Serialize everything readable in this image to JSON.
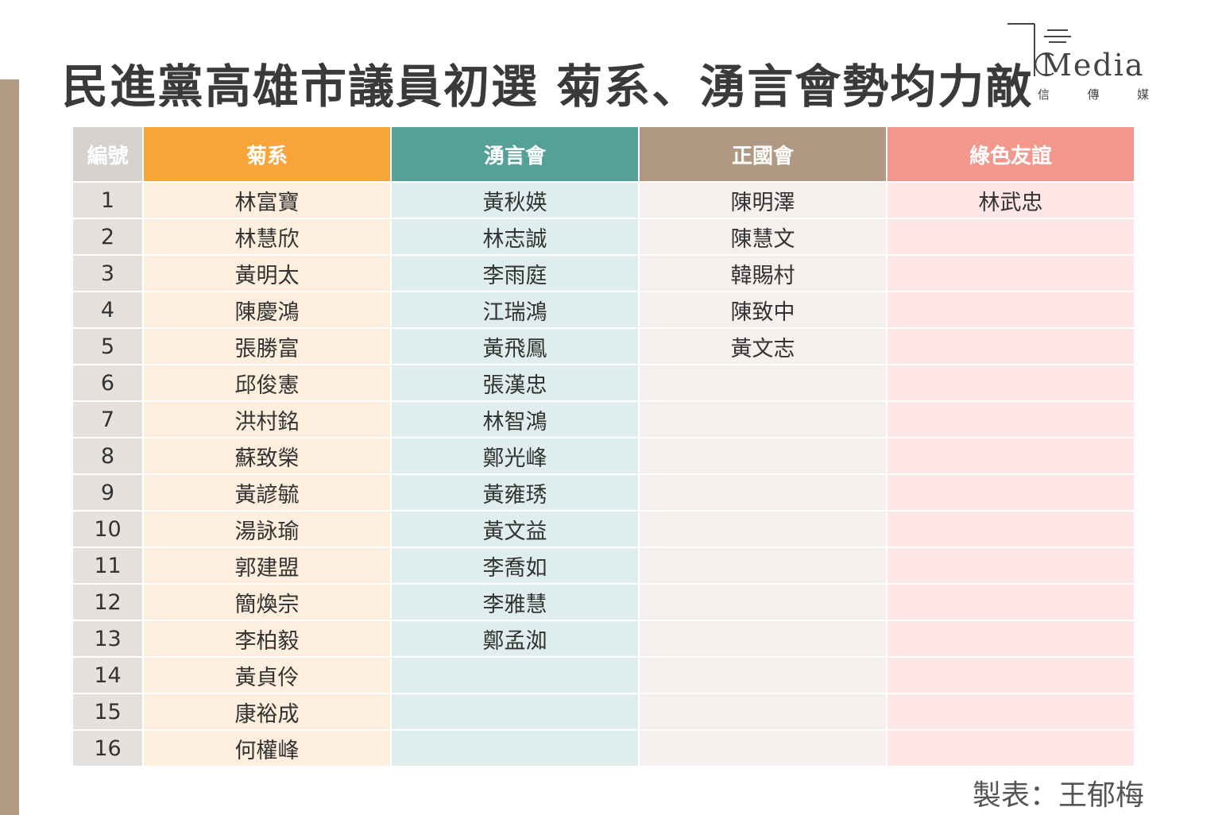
{
  "title": "民進黨高雄市議員初選  菊系、湧言會勢均力敵",
  "logo": {
    "wordmark": "Media",
    "subtitle": [
      "信",
      "傳",
      "媒"
    ],
    "icon": "cm-logo-icon"
  },
  "table": {
    "headers": [
      "編號",
      "菊系",
      "湧言會",
      "正國會",
      "綠色友誼"
    ],
    "header_colors": [
      "#d6d2cf",
      "#f7a43a",
      "#55a19a",
      "#b09883",
      "#f4978c"
    ],
    "rows": [
      [
        "1",
        "林富寶",
        "黃秋媖",
        "陳明澤",
        "林武忠"
      ],
      [
        "2",
        "林慧欣",
        "林志誠",
        "陳慧文",
        ""
      ],
      [
        "3",
        "黃明太",
        "李雨庭",
        "韓賜村",
        ""
      ],
      [
        "4",
        "陳慶鴻",
        "江瑞鴻",
        "陳致中",
        ""
      ],
      [
        "5",
        "張勝富",
        "黃飛鳳",
        "黃文志",
        ""
      ],
      [
        "6",
        "邱俊憲",
        "張漢忠",
        "",
        ""
      ],
      [
        "7",
        "洪村銘",
        "林智鴻",
        "",
        ""
      ],
      [
        "8",
        "蘇致榮",
        "鄭光峰",
        "",
        ""
      ],
      [
        "9",
        "黃諺毓",
        "黃雍琇",
        "",
        ""
      ],
      [
        "10",
        "湯詠瑜",
        "黃文益",
        "",
        ""
      ],
      [
        "11",
        "郭建盟",
        "李喬如",
        "",
        ""
      ],
      [
        "12",
        "簡煥宗",
        "李雅慧",
        "",
        ""
      ],
      [
        "13",
        "李柏毅",
        "鄭孟洳",
        "",
        ""
      ],
      [
        "14",
        "黃貞伶",
        "",
        "",
        ""
      ],
      [
        "15",
        "康裕成",
        "",
        "",
        ""
      ],
      [
        "16",
        "何權峰",
        "",
        "",
        ""
      ]
    ]
  },
  "credit": "製表：王郁梅"
}
